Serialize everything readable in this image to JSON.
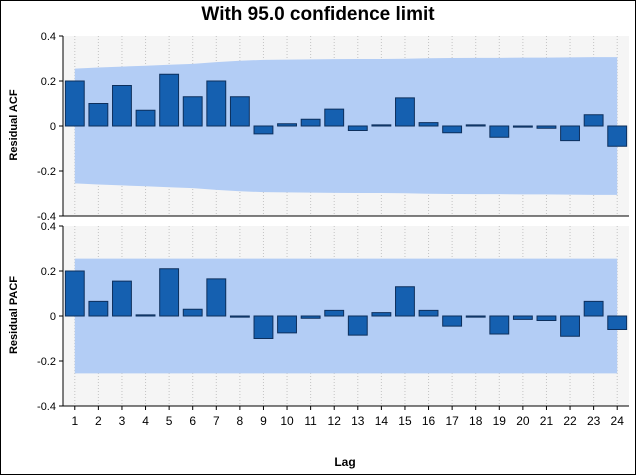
{
  "chart_data": {
    "title": "With 95.0 confidence limit",
    "xlabel": "Lag",
    "type": "bar",
    "colors": {
      "bar_fill": "#1560b0",
      "bar_stroke": "#0d2f5c",
      "band": "#b3cdf5",
      "plot_bg": "#f5f5f5"
    },
    "lags": [
      1,
      2,
      3,
      4,
      5,
      6,
      7,
      8,
      9,
      10,
      11,
      12,
      13,
      14,
      15,
      16,
      17,
      18,
      19,
      20,
      21,
      22,
      23,
      24
    ],
    "panels": [
      {
        "name": "acf",
        "ylabel": "Residual ACF",
        "ylim": [
          -0.4,
          0.4
        ],
        "yticks": [
          "0.4",
          "0.2",
          "0",
          "-0.2",
          "-0.4"
        ],
        "values": [
          0.2,
          0.1,
          0.18,
          0.07,
          0.23,
          0.13,
          0.2,
          0.13,
          -0.035,
          0.01,
          0.03,
          0.075,
          -0.02,
          0.005,
          0.125,
          0.015,
          -0.03,
          0.005,
          -0.05,
          -0.005,
          -0.01,
          -0.065,
          0.05,
          -0.09
        ],
        "confidence_limit": [
          0.255,
          0.26,
          0.264,
          0.268,
          0.272,
          0.276,
          0.284,
          0.29,
          0.294,
          0.295,
          0.296,
          0.297,
          0.298,
          0.298,
          0.299,
          0.301,
          0.302,
          0.303,
          0.303,
          0.304,
          0.304,
          0.305,
          0.306,
          0.306
        ]
      },
      {
        "name": "pacf",
        "ylabel": "Residual PACF",
        "ylim": [
          -0.4,
          0.4
        ],
        "yticks": [
          "0.4",
          "0.2",
          "0",
          "-0.2",
          "-0.4"
        ],
        "values": [
          0.2,
          0.065,
          0.155,
          0.005,
          0.21,
          0.03,
          0.165,
          -0.005,
          -0.1,
          -0.075,
          -0.01,
          0.025,
          -0.085,
          0.015,
          0.13,
          0.025,
          -0.045,
          -0.005,
          -0.08,
          -0.015,
          -0.02,
          -0.09,
          0.065,
          -0.06
        ],
        "confidence_limit": [
          0.255,
          0.255,
          0.255,
          0.255,
          0.255,
          0.255,
          0.255,
          0.255,
          0.255,
          0.255,
          0.255,
          0.255,
          0.255,
          0.255,
          0.255,
          0.255,
          0.255,
          0.255,
          0.255,
          0.255,
          0.255,
          0.255,
          0.255,
          0.255
        ]
      }
    ]
  }
}
